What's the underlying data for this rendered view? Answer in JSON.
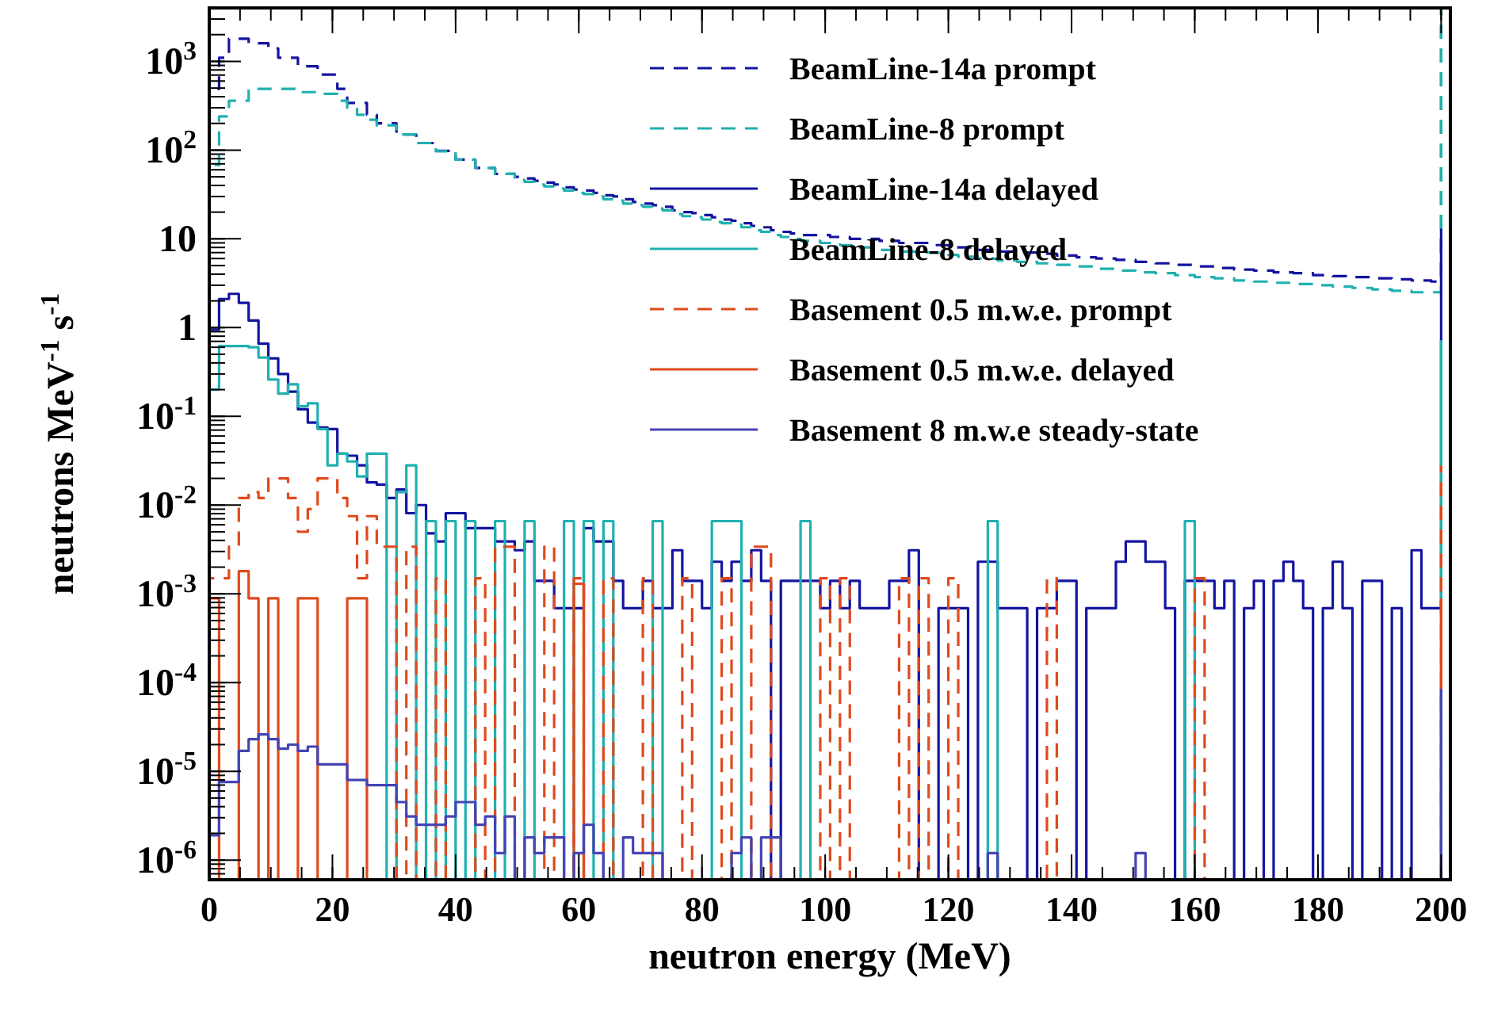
{
  "chart_data": {
    "type": "step",
    "xlabel": "neutron energy (MeV)",
    "ylabel": "neutrons MeV$^{-1}$ s$^{-1}$",
    "log": "y",
    "legend": "top right",
    "marker": "none",
    "grid": false,
    "xlim": [
      0,
      201.5
    ],
    "xticks": [
      0,
      20,
      40,
      60,
      80,
      100,
      120,
      140,
      160,
      180,
      200
    ],
    "ylim": [
      6e-07,
      4000
    ],
    "yticks": [
      {
        "value": 1000,
        "label": "10$^{3}$"
      },
      {
        "value": 100,
        "label": "10$^{2}$"
      },
      10,
      1,
      {
        "value": 0.1,
        "label": "10$^{-1}$"
      },
      {
        "value": 0.01,
        "label": "10$^{-2}$"
      },
      {
        "value": 0.001,
        "label": "10$^{-3}$"
      },
      {
        "value": 0.0001,
        "label": "10$^{-4}$"
      },
      {
        "value": 1e-05,
        "label": "10$^{-5}$"
      },
      {
        "value": 1e-06,
        "label": "10$^{-6}$"
      }
    ],
    "x": [
      0,
      1.6,
      3.2,
      4.8,
      6.4,
      8,
      9.6,
      11.2,
      12.8,
      14.4,
      16,
      17.6,
      19.2,
      20.8,
      22.4,
      24,
      25.6,
      27.2,
      28.8,
      30.4,
      32,
      33.6,
      35.2,
      36.8,
      38.4,
      40,
      41.6,
      43.2,
      44.8,
      46.4,
      48,
      49.6,
      51.2,
      52.8,
      54.4,
      56,
      57.6,
      59.2,
      60.8,
      62.4,
      64,
      65.6,
      67.2,
      68.8,
      70.4,
      72,
      73.6,
      75.2,
      76.8,
      78.4,
      80,
      81.6,
      83.2,
      84.8,
      86.4,
      88,
      89.6,
      91.2,
      92.8,
      94.4,
      96,
      97.6,
      99.2,
      100.8,
      102.4,
      104,
      105.6,
      107.2,
      108.8,
      110.4,
      112,
      113.6,
      115.2,
      116.8,
      118.4,
      120,
      121.6,
      123.2,
      124.8,
      126.4,
      128,
      129.6,
      131.2,
      132.8,
      134.4,
      136,
      137.6,
      139.2,
      140.8,
      142.4,
      144,
      145.6,
      147.2,
      148.8,
      150.4,
      152,
      153.6,
      155.2,
      156.8,
      158.4,
      160,
      161.6,
      163.2,
      164.8,
      166.4,
      168,
      169.6,
      171.2,
      172.8,
      174.4,
      176,
      177.6,
      179.2,
      180.8,
      182.4,
      184,
      185.6,
      187.2,
      188.8,
      190.4,
      192,
      193.6,
      195.2,
      196.8,
      198.4,
      200
    ],
    "series": [
      {
        "name": "BeamLine-14a prompt",
        "color": "#1414a0",
        "line_style": "dashed",
        "values": [
          490,
          1100,
          1800,
          1800,
          1600,
          1600,
          1400,
          1100,
          1100,
          880,
          880,
          710,
          710,
          490,
          340,
          340,
          250,
          200,
          200,
          150,
          150,
          120,
          120,
          98,
          98,
          78,
          78,
          63,
          63,
          54,
          54,
          50,
          48,
          45,
          43,
          41,
          38,
          36,
          35,
          33,
          31,
          30,
          28,
          26,
          25,
          24,
          23,
          21,
          20,
          19.5,
          18.5,
          17.5,
          16.5,
          16,
          15,
          14,
          13.5,
          12.5,
          12,
          11.5,
          11,
          11,
          11,
          10.5,
          10.5,
          10,
          10,
          10,
          9.5,
          9.5,
          9,
          9,
          9,
          8.5,
          8.5,
          8,
          8,
          8,
          7.5,
          7.5,
          7.2,
          7.2,
          7,
          7,
          6.8,
          6.8,
          6.5,
          6.5,
          6.2,
          6.2,
          6,
          6,
          5.8,
          5.8,
          5.5,
          5.5,
          5.3,
          5.3,
          5.1,
          5.1,
          4.9,
          4.9,
          4.7,
          4.7,
          4.5,
          4.5,
          4.4,
          4.4,
          4.2,
          4.2,
          4.1,
          4.1,
          3.9,
          3.9,
          3.8,
          3.8,
          3.7,
          3.7,
          3.6,
          3.6,
          3.5,
          3.5,
          3.4,
          3.4,
          3.3,
          4000
        ]
      },
      {
        "name": "BeamLine-8 prompt",
        "color": "#20b0b0",
        "line_style": "dashed",
        "values": [
          68,
          240,
          360,
          360,
          490,
          490,
          490,
          490,
          490,
          450,
          450,
          430,
          430,
          360,
          300,
          250,
          220,
          190,
          190,
          150,
          150,
          120,
          120,
          97,
          97,
          78,
          78,
          63,
          63,
          54,
          54,
          46,
          44,
          41,
          39,
          37,
          35,
          33,
          32,
          30,
          28,
          27,
          25,
          24,
          23,
          22,
          21,
          19,
          18,
          17.5,
          16.5,
          15.5,
          15,
          14.5,
          13.5,
          12.5,
          12,
          11,
          10.5,
          10,
          9.5,
          9.5,
          9,
          9,
          8.5,
          8.5,
          8,
          8,
          7.5,
          7.5,
          7.2,
          7.2,
          7,
          7,
          6.6,
          6.6,
          6.3,
          6.3,
          6,
          6,
          5.7,
          5.7,
          5.5,
          5.5,
          5.3,
          5.3,
          5.1,
          5.1,
          4.9,
          4.9,
          4.6,
          4.6,
          4.4,
          4.4,
          4.2,
          4.2,
          4.1,
          4.1,
          3.9,
          3.9,
          3.7,
          3.7,
          3.6,
          3.6,
          3.4,
          3.4,
          3.3,
          3.3,
          3.2,
          3.2,
          3.1,
          3.1,
          3,
          3,
          2.9,
          2.9,
          2.8,
          2.8,
          2.7,
          2.7,
          2.6,
          2.6,
          2.5,
          2.5,
          2.5,
          4000
        ]
      },
      {
        "name": "BeamLine-14a delayed",
        "color": "#1414a0",
        "line_style": "solid",
        "values": [
          0.95,
          2.1,
          2.4,
          1.9,
          1.2,
          0.66,
          0.45,
          0.3,
          0.19,
          0.12,
          0.085,
          0.075,
          0.072,
          0.038,
          0.036,
          0.028,
          0.018,
          0.017,
          0.012,
          0.015,
          0.0081,
          0.01,
          0.0048,
          0.0039,
          0.0081,
          0.0081,
          0.0055,
          0.0055,
          0.0055,
          0.0039,
          0.0039,
          0.0031,
          0.0039,
          0.0014,
          0.0014,
          0.00069,
          0.00069,
          0.00069,
          0.0055,
          0.0039,
          0.0039,
          0.0014,
          0.00069,
          0.00069,
          0.0014,
          0.00069,
          0.00069,
          0.0031,
          0.0014,
          0.0014,
          0.00069,
          0.0023,
          0.0014,
          0.0023,
          0.0014,
          0.0031,
          0.0014,
          null,
          0.0014,
          0.0014,
          0.0014,
          0.0014,
          0.00069,
          0.0014,
          0.00069,
          0.0014,
          0.00069,
          0.00069,
          0.00069,
          0.0014,
          0.0014,
          0.0031,
          null,
          null,
          0.00069,
          0.00069,
          0.00069,
          null,
          0.0023,
          0.0023,
          0.00069,
          0.00069,
          0.00069,
          null,
          0.00069,
          0.00069,
          0.0014,
          0.0014,
          null,
          0.00069,
          0.00069,
          0.00069,
          0.0023,
          0.0039,
          0.0039,
          0.0023,
          0.0023,
          0.00069,
          null,
          0.0014,
          0.0014,
          0.0014,
          0.00069,
          0.0014,
          null,
          0.00069,
          0.0014,
          null,
          0.0014,
          0.0023,
          0.0014,
          0.00069,
          null,
          0.00069,
          0.0023,
          0.00069,
          null,
          0.0014,
          0.0014,
          null,
          0.00069,
          null,
          0.0031,
          0.00069,
          0.00069,
          13
        ]
      },
      {
        "name": "BeamLine-8 delayed",
        "color": "#20b0b0",
        "line_style": "solid",
        "values": [
          0.2,
          0.62,
          0.62,
          0.62,
          0.6,
          0.46,
          0.26,
          0.18,
          0.23,
          0.13,
          0.14,
          0.072,
          0.028,
          0.038,
          0.031,
          0.021,
          0.038,
          0.038,
          null,
          0.014,
          0.028,
          null,
          0.0066,
          null,
          0.0066,
          null,
          0.0066,
          null,
          null,
          0.0066,
          null,
          null,
          0.0066,
          null,
          null,
          null,
          0.0066,
          null,
          0.0066,
          null,
          0.0066,
          null,
          null,
          null,
          null,
          0.0066,
          null,
          null,
          null,
          null,
          null,
          0.0066,
          0.0066,
          0.0066,
          null,
          null,
          null,
          null,
          null,
          null,
          0.0066,
          null,
          null,
          null,
          null,
          null,
          null,
          null,
          null,
          null,
          null,
          null,
          null,
          null,
          null,
          null,
          null,
          null,
          null,
          0.0066,
          null,
          null,
          null,
          null,
          null,
          null,
          null,
          null,
          null,
          null,
          null,
          null,
          null,
          null,
          null,
          null,
          null,
          null,
          null,
          0.0066,
          null,
          null,
          null,
          null,
          null,
          null,
          null,
          null,
          null,
          null,
          null,
          null,
          null,
          null,
          null,
          null,
          null,
          null,
          null,
          null,
          null,
          null,
          null,
          null,
          null,
          0.72
        ]
      },
      {
        "name": "Basement 0.5 m.w.e. prompt",
        "color": "#e04a1c",
        "line_style": "dashed",
        "values": [
          0.0015,
          0.0015,
          0.0034,
          0.012,
          0.014,
          0.012,
          0.02,
          0.02,
          0.012,
          0.005,
          0.009,
          0.02,
          0.02,
          0.012,
          0.0075,
          0.0015,
          0.0075,
          0.0034,
          0.0034,
          null,
          0.0034,
          null,
          null,
          0.0015,
          null,
          null,
          null,
          0.0015,
          null,
          0.0034,
          0.0034,
          null,
          null,
          null,
          0.0034,
          null,
          null,
          0.0015,
          null,
          null,
          0.0015,
          null,
          null,
          null,
          0.0015,
          null,
          null,
          null,
          0.0015,
          null,
          null,
          null,
          0.0015,
          null,
          null,
          0.0034,
          0.0034,
          null,
          null,
          null,
          null,
          null,
          0.0015,
          null,
          0.0015,
          null,
          null,
          null,
          null,
          null,
          0.0015,
          null,
          0.0015,
          null,
          null,
          0.0015,
          null,
          null,
          null,
          null,
          null,
          null,
          null,
          null,
          null,
          0.0015,
          null,
          null,
          null,
          null,
          null,
          null,
          null,
          null,
          null,
          null,
          null,
          null,
          null,
          null,
          0.0015,
          null,
          null,
          null,
          null,
          null,
          null,
          null,
          null,
          null,
          null,
          null,
          null,
          null,
          null,
          null,
          null,
          null,
          null,
          null,
          null,
          null,
          null,
          null,
          null,
          0.028
        ]
      },
      {
        "name": "Basement 0.5 m.w.e. delayed",
        "color": "#e04a1c",
        "line_style": "solid",
        "values": [
          0.00089,
          null,
          null,
          0.0018,
          0.00089,
          null,
          0.00089,
          null,
          null,
          0.00089,
          0.00089,
          null,
          null,
          null,
          0.00089,
          0.00089,
          null,
          null,
          null,
          null,
          null,
          null,
          null,
          null,
          null,
          null,
          null,
          null,
          null,
          null,
          null,
          null,
          null,
          null,
          null,
          null,
          null,
          0.0013,
          null,
          null,
          null,
          null,
          null,
          null,
          null,
          null,
          null,
          null,
          null,
          null,
          null,
          null,
          null,
          null,
          null,
          null,
          null,
          null,
          null,
          null,
          null,
          null,
          null,
          null,
          null,
          null,
          null,
          null,
          null,
          null,
          null,
          null,
          null,
          null,
          null,
          null,
          null,
          null,
          null,
          null,
          null,
          null,
          null,
          null,
          null,
          null,
          null,
          null,
          null,
          null,
          null,
          null,
          null,
          null,
          null,
          null,
          null,
          null,
          null,
          null,
          null,
          null,
          null,
          null,
          null,
          null,
          null,
          null,
          null,
          null,
          null,
          null,
          null,
          null,
          null,
          null,
          null,
          null,
          null,
          null,
          null,
          null,
          null,
          null,
          null,
          0.00089
        ]
      },
      {
        "name": "Basement 8 m.w.e steady-state",
        "color": "#4444b4",
        "line_style": "solid",
        "values": [
          1.9e-06,
          7.6e-06,
          7.6e-06,
          1.7e-05,
          2.3e-05,
          2.6e-05,
          2.3e-05,
          1.8e-05,
          2e-05,
          1.7e-05,
          1.9e-05,
          1.2e-05,
          1.2e-05,
          1.2e-05,
          8e-06,
          8e-06,
          7e-06,
          7e-06,
          7e-06,
          4.5e-06,
          3.1e-06,
          2.5e-06,
          2.5e-06,
          2.5e-06,
          3.1e-06,
          4.5e-06,
          4.5e-06,
          2.5e-06,
          3.1e-06,
          1.2e-06,
          3.1e-06,
          null,
          1.8e-06,
          1.2e-06,
          1.8e-06,
          1.8e-06,
          null,
          1.2e-06,
          2.5e-06,
          1.2e-06,
          null,
          null,
          1.8e-06,
          1.2e-06,
          1.2e-06,
          1.2e-06,
          null,
          null,
          null,
          null,
          null,
          null,
          null,
          1.2e-06,
          1.8e-06,
          null,
          1.8e-06,
          1.8e-06,
          null,
          null,
          null,
          null,
          null,
          null,
          null,
          null,
          null,
          null,
          null,
          null,
          null,
          null,
          null,
          null,
          null,
          null,
          null,
          null,
          null,
          1.2e-06,
          null,
          null,
          null,
          null,
          null,
          null,
          null,
          null,
          null,
          null,
          null,
          null,
          null,
          null,
          1.2e-06,
          null,
          null,
          null,
          null,
          null,
          null,
          null,
          null,
          null,
          null,
          null,
          null,
          null,
          null,
          null,
          null,
          null,
          null,
          null,
          null,
          null,
          null,
          null,
          null,
          null,
          null,
          null,
          null,
          null,
          null,
          8.5e-05
        ]
      }
    ]
  }
}
